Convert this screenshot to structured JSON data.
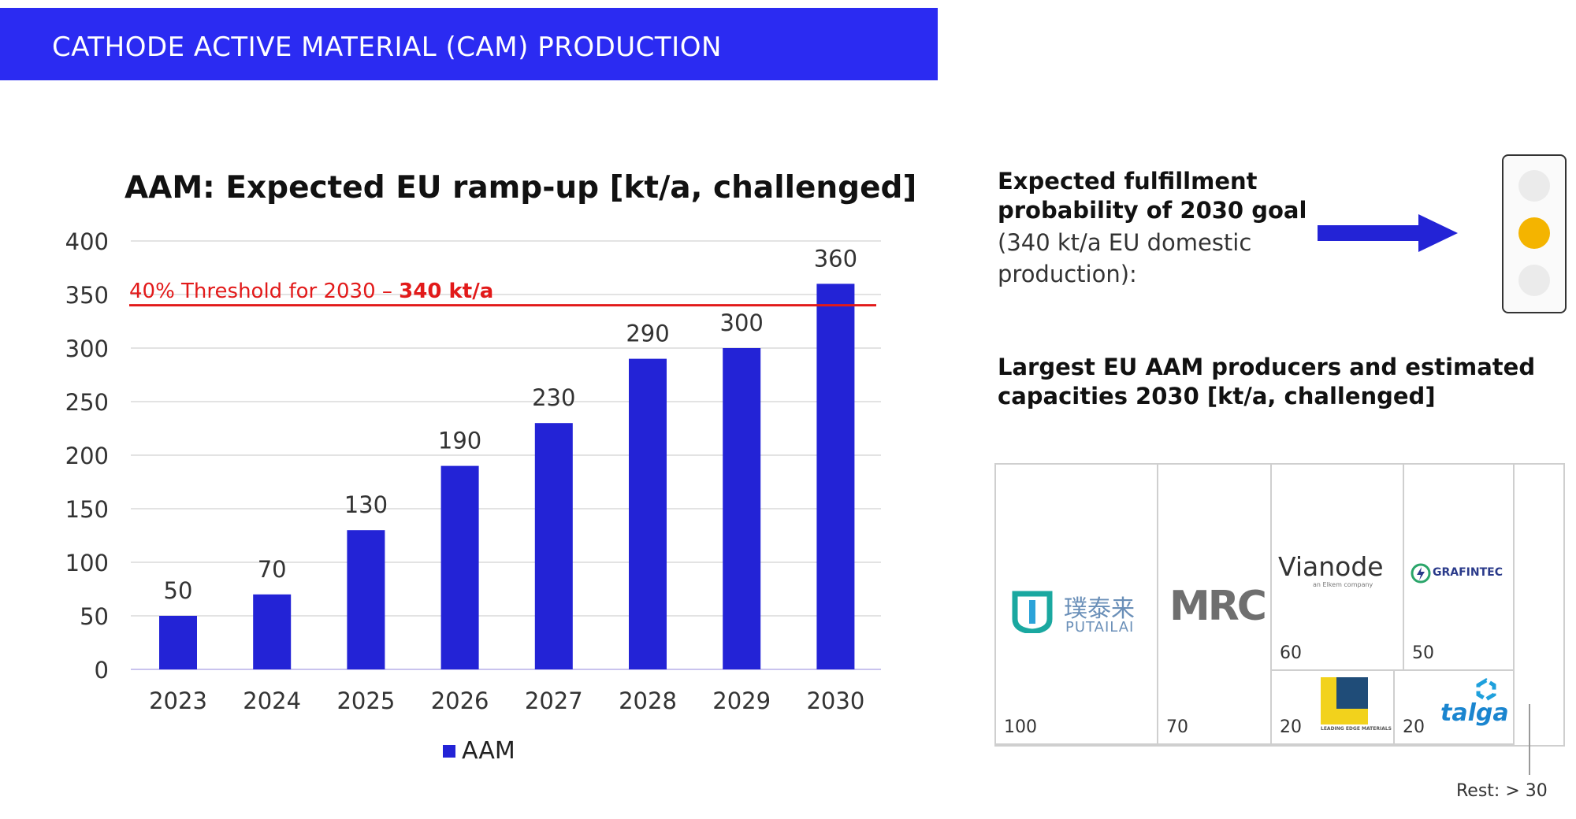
{
  "banner": {
    "title": "CATHODE ACTIVE MATERIAL (CAM) PRODUCTION"
  },
  "colors": {
    "banner": "#2b2bf2",
    "bar": "#2323d6",
    "threshold": "#e21a1a",
    "traffic_amber": "#f4b400"
  },
  "chart_data": {
    "type": "bar",
    "title": "AAM: Expected EU ramp-up [kt/a, challenged]",
    "categories": [
      "2023",
      "2024",
      "2025",
      "2026",
      "2027",
      "2028",
      "2029",
      "2030"
    ],
    "series": [
      {
        "name": "AAM",
        "values": [
          50,
          70,
          130,
          190,
          230,
          290,
          300,
          360
        ]
      }
    ],
    "data_labels": [
      "50",
      "70",
      "130",
      "190",
      "230",
      "290",
      "300",
      "360"
    ],
    "ylim": [
      0,
      400
    ],
    "yticks": [
      "0",
      "50",
      "100",
      "150",
      "200",
      "250",
      "300",
      "350",
      "400"
    ],
    "ytick_values": [
      0,
      50,
      100,
      150,
      200,
      250,
      300,
      350,
      400
    ],
    "grid": true,
    "legend": "bottom",
    "threshold": {
      "value": 340,
      "label_prefix": "40% Threshold for 2030 – ",
      "label_value": "340 kt/a"
    }
  },
  "fulfillment": {
    "heading": "Expected fulfillment probability of 2030 goal",
    "detail": "(340 kt/a EU domestic production):",
    "arrow_icon": "right-arrow-icon",
    "traffic_light": {
      "active": "amber"
    }
  },
  "producers": {
    "heading": "Largest EU AAM producers and estimated capacities 2030 [kt/a, challenged]",
    "cells": [
      {
        "logo_cn": "璞泰来",
        "logo_en": "PUTAILAI",
        "value": "100"
      },
      {
        "logo": "MRC",
        "value": "70"
      },
      {
        "logo": "Vianode",
        "logo_sub": "an Elkem company",
        "value": "60"
      },
      {
        "logo": "GRAFINTEC",
        "value": "50"
      },
      {
        "logo": "LEADING EDGE MATERIALS",
        "value": "20"
      },
      {
        "logo": "talga",
        "value": "20"
      }
    ],
    "rest": "Rest: > 30"
  }
}
